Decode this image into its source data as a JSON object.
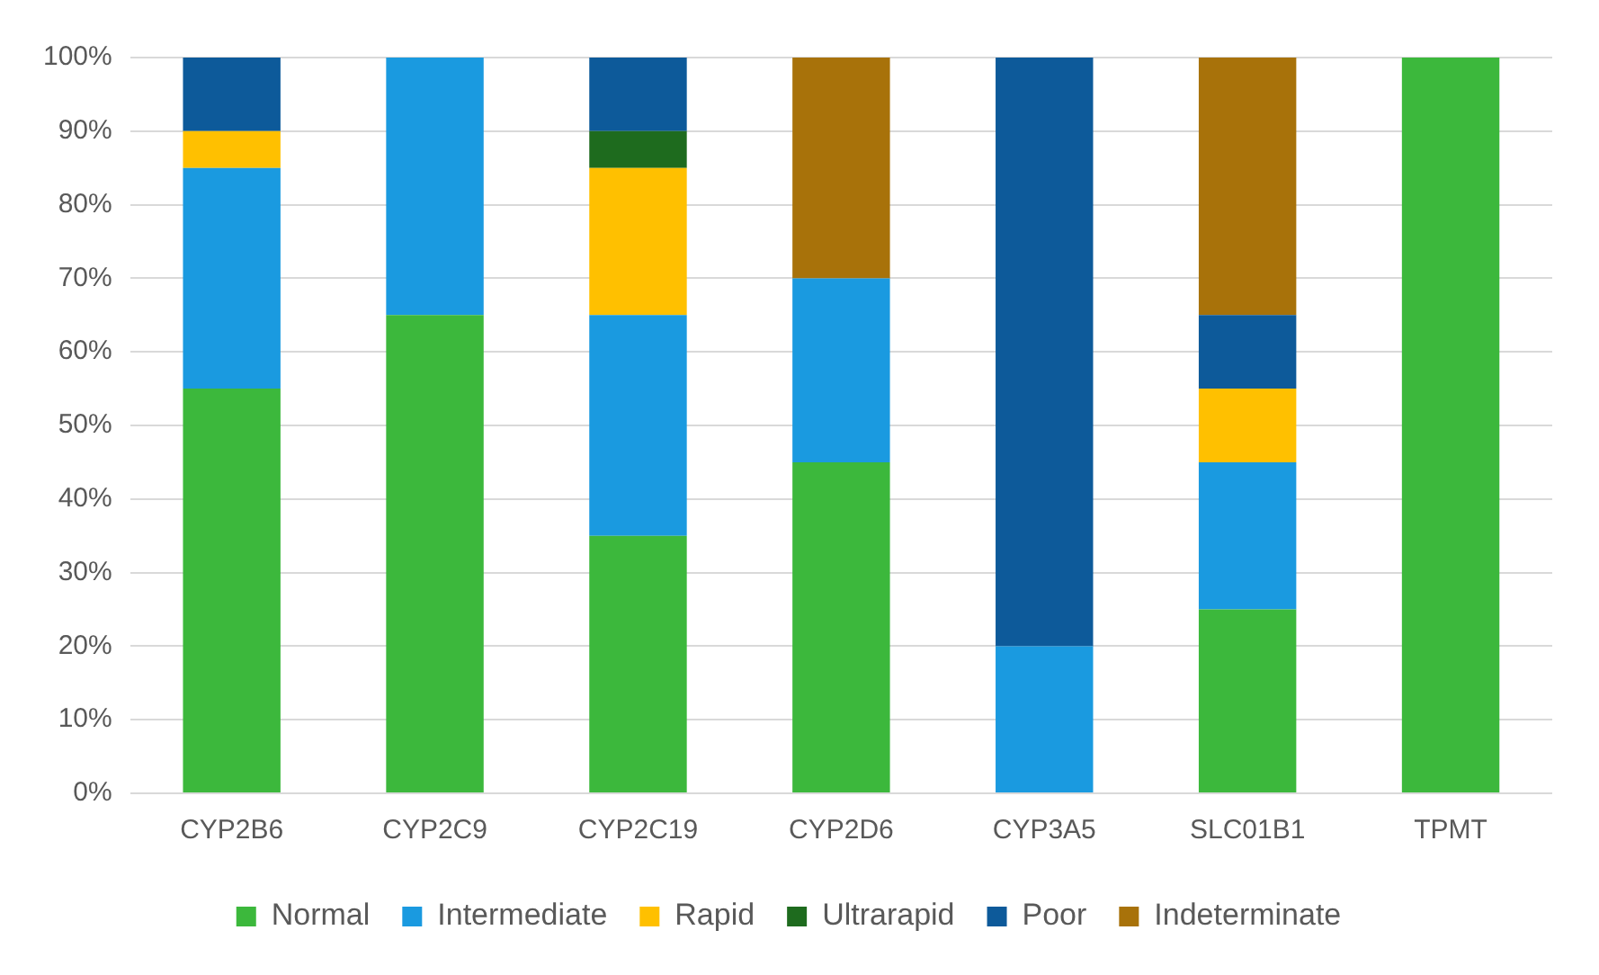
{
  "chart_data": {
    "type": "bar",
    "stacked": true,
    "categories": [
      "CYP2B6",
      "CYP2C9",
      "CYP2C19",
      "CYP2D6",
      "CYP3A5",
      "SLC01B1",
      "TPMT"
    ],
    "series": [
      {
        "name": "Normal",
        "color": "#3cb83c",
        "values": [
          55,
          65,
          35,
          45,
          0,
          25,
          100
        ]
      },
      {
        "name": "Intermediate",
        "color": "#1a9ae0",
        "values": [
          30,
          35,
          30,
          25,
          20,
          20,
          0
        ]
      },
      {
        "name": "Rapid",
        "color": "#ffc000",
        "values": [
          5,
          0,
          20,
          0,
          0,
          10,
          0
        ]
      },
      {
        "name": "Ultrarapid",
        "color": "#1e6b1e",
        "values": [
          0,
          0,
          5,
          0,
          0,
          0,
          0
        ]
      },
      {
        "name": "Poor",
        "color": "#0d5a9a",
        "values": [
          10,
          0,
          10,
          0,
          80,
          10,
          0
        ]
      },
      {
        "name": "Indeterminate",
        "color": "#a8720a",
        "values": [
          0,
          0,
          0,
          30,
          0,
          35,
          0
        ]
      }
    ],
    "ylim": [
      0,
      100
    ],
    "yticks": [
      {
        "value": 0,
        "label": "0%"
      },
      {
        "value": 10,
        "label": "10%"
      },
      {
        "value": 20,
        "label": "20%"
      },
      {
        "value": 30,
        "label": "30%"
      },
      {
        "value": 40,
        "label": "40%"
      },
      {
        "value": 50,
        "label": "50%"
      },
      {
        "value": 60,
        "label": "60%"
      },
      {
        "value": 70,
        "label": "70%"
      },
      {
        "value": 80,
        "label": "80%"
      },
      {
        "value": 90,
        "label": "90%"
      },
      {
        "value": 100,
        "label": "100%"
      }
    ],
    "grid": "y",
    "legend": "bottom"
  }
}
